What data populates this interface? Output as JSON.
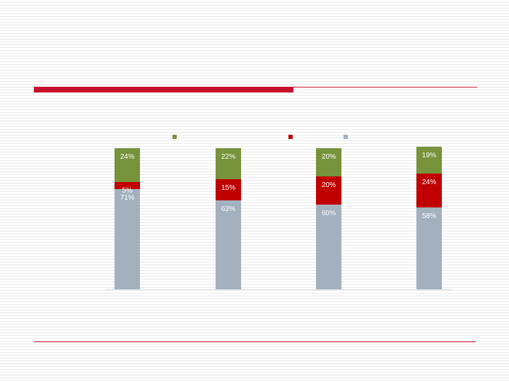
{
  "chart_data": {
    "type": "bar",
    "stacked": true,
    "percent_stacked": true,
    "title": "",
    "xlabel": "",
    "ylabel": "",
    "ylim": [
      0,
      100
    ],
    "legend_position": "top",
    "categories": [
      "",
      "",
      "",
      ""
    ],
    "series": [
      {
        "values": [
          71,
          63,
          60,
          58
        ],
        "labels": [
          "71%",
          "63%",
          "60%",
          "58%"
        ],
        "color": "#a3b1bf",
        "label_color": "#ffffff"
      },
      {
        "values": [
          5,
          15,
          20,
          24
        ],
        "labels": [
          "5%",
          "15%",
          "20%",
          "24%"
        ],
        "color": "#c00000",
        "label_color": "#ffffff"
      },
      {
        "values": [
          24,
          22,
          20,
          19
        ],
        "labels": [
          "24%",
          "22%",
          "20%",
          "19%"
        ],
        "color": "#77933c",
        "label_color": "#ffffff"
      }
    ]
  },
  "colors": {
    "accent": "#c8102e",
    "background": "#ffffff",
    "stripe": "#e9e9e9"
  }
}
